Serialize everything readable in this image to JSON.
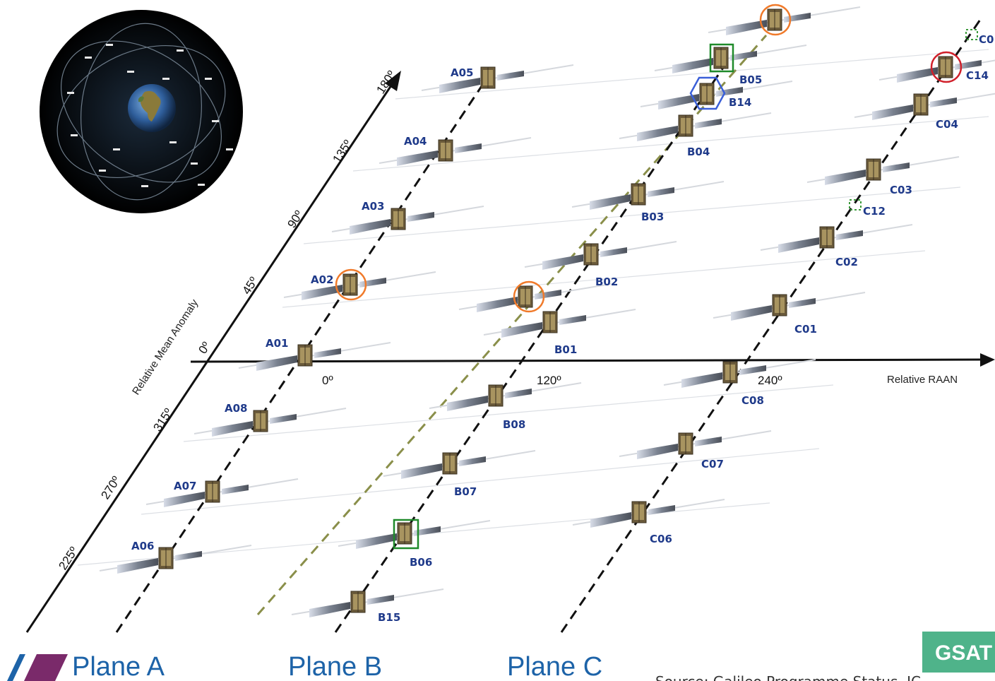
{
  "axes": {
    "anomaly_title": "Relative Mean Anomaly",
    "raan_title": "Relative RAAN",
    "anomaly_ticks": [
      "225º",
      "270º",
      "315º",
      "0º",
      "45º",
      "90º",
      "135º",
      "180º"
    ],
    "raan_ticks": [
      "0º",
      "120º",
      "240º"
    ]
  },
  "planes": {
    "a": "Plane A",
    "b": "Plane B",
    "c": "Plane C"
  },
  "satellites": {
    "A01": "A01",
    "A02": "A02",
    "A03": "A03",
    "A04": "A04",
    "A05": "A05",
    "A06": "A06",
    "A07": "A07",
    "A08": "A08",
    "B01": "B01",
    "B02": "B02",
    "B03": "B03",
    "B04": "B04",
    "B05": "B05",
    "B06": "B06",
    "B07": "B07",
    "B08": "B08",
    "B14": "B14",
    "B15": "B15",
    "C01": "C01",
    "C02": "C02",
    "C03": "C03",
    "C04": "C04",
    "C06": "C06",
    "C07": "C07",
    "C08": "C08",
    "C12": "C12",
    "C14": "C14",
    "C0x": "C0"
  },
  "source": "Source: Galileo Programme Status, IC",
  "logo": "GSAT",
  "colors": {
    "orbit_line": "#111111",
    "dashed_green": "#8a8f4a",
    "plane_text": "#1d63a8",
    "highlight_orange": "#f07a2a",
    "highlight_green": "#1f8a2a",
    "highlight_blue": "#3a5fd8",
    "highlight_red": "#d0202a",
    "logo_bg": "#4fb38a"
  }
}
